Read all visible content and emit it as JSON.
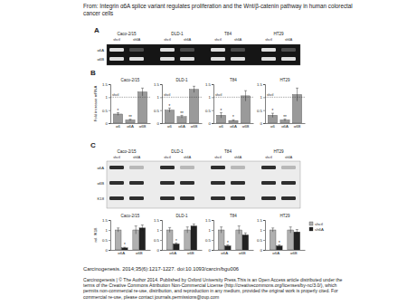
{
  "header": [
    "From: Integrin α6A splice variant regulates proliferation and the Wnt/β-catenin pathway in human colorectal",
    "cancer cells"
  ],
  "panels": [
    "A",
    "B",
    "C"
  ],
  "cell_lines": [
    "Caco-2/15",
    "DLD-1",
    "T84",
    "HT29"
  ],
  "lanes": [
    "shctl",
    "sh6A"
  ],
  "gel_bands": [
    "α6A",
    "α6B"
  ],
  "blot_bands": [
    "α6A",
    "α6B",
    "K18"
  ],
  "chart_data": [
    {
      "type": "bar",
      "title": "Caco-2/15",
      "y_label": "Fold increase mRNA",
      "categories": [
        "α6",
        "α6A",
        "α6B"
      ],
      "values": [
        0.35,
        0.12,
        1.2
      ],
      "errors": [
        0.05,
        0.03,
        0.15
      ],
      "color": "#9a9a9a",
      "ylim": [
        0,
        1.5
      ],
      "yticks": [
        0,
        0.5,
        1,
        1.5
      ],
      "annotations": [
        {
          "y": 1,
          "text": "shctl"
        },
        {
          "category": "α6",
          "text": "*"
        },
        {
          "category": "α6A",
          "text": "**"
        }
      ]
    },
    {
      "type": "bar",
      "title": "DLD-1",
      "categories": [
        "α6",
        "α6A",
        "α6B"
      ],
      "values": [
        0.5,
        0.25,
        1.3
      ],
      "errors": [
        0.08,
        0.05,
        0.12
      ],
      "color": "#9a9a9a",
      "ylim": [
        0,
        1.5
      ],
      "yticks": [
        0,
        0.5,
        1,
        1.5
      ],
      "annotations": [
        {
          "y": 1,
          "text": "shctl"
        },
        {
          "category": "α6",
          "text": "*"
        },
        {
          "category": "α6A",
          "text": "**"
        }
      ]
    },
    {
      "type": "bar",
      "title": "T84",
      "categories": [
        "α6",
        "α6A",
        "α6B"
      ],
      "values": [
        0.3,
        0.1,
        1.05
      ],
      "errors": [
        0.1,
        0.03,
        0.2
      ],
      "color": "#9a9a9a",
      "ylim": [
        0,
        1.5
      ],
      "yticks": [
        0,
        0.5,
        1,
        1.5
      ],
      "annotations": [
        {
          "y": 1,
          "text": "shctl"
        },
        {
          "category": "α6",
          "text": "*"
        },
        {
          "category": "α6A",
          "text": "*"
        }
      ]
    },
    {
      "type": "bar",
      "title": "HT29",
      "categories": [
        "α6",
        "α6A",
        "α6B"
      ],
      "values": [
        0.3,
        0.12,
        1.1
      ],
      "errors": [
        0.08,
        0.04,
        0.25
      ],
      "color": "#9a9a9a",
      "ylim": [
        0,
        1.5
      ],
      "yticks": [
        0,
        0.5,
        1,
        1.5
      ],
      "annotations": [
        {
          "y": 1,
          "text": "shctl"
        },
        {
          "category": "α6",
          "text": "*"
        },
        {
          "category": "α6A",
          "text": "**"
        }
      ]
    },
    {
      "type": "bar",
      "title": "Caco-2/15",
      "y_label": "rel. /K18",
      "categories": [
        "α6A",
        "α6B"
      ],
      "series": [
        {
          "color": "#b0b0b0",
          "values": [
            1,
            1
          ],
          "errors": [
            0.1,
            0.2
          ]
        },
        {
          "color": "#222222",
          "values": [
            0.1,
            1.1
          ],
          "errors": [
            0.03,
            0.15
          ]
        }
      ],
      "ylim": [
        0,
        1.5
      ],
      "yticks": [
        0,
        0.5,
        1,
        1.5
      ],
      "annotations": [
        {
          "category": "α6A",
          "series": 1,
          "text": "*"
        }
      ]
    },
    {
      "type": "bar",
      "title": "DLD-1",
      "categories": [
        "α6A",
        "α6B"
      ],
      "series": [
        {
          "color": "#b0b0b0",
          "values": [
            1,
            1
          ],
          "errors": [
            0.12,
            0.15
          ]
        },
        {
          "color": "#222222",
          "values": [
            0.3,
            1.2
          ],
          "errors": [
            0.05,
            0.1
          ]
        }
      ],
      "ylim": [
        0,
        1.5
      ],
      "yticks": [
        0,
        0.5,
        1,
        1.5
      ],
      "annotations": [
        {
          "category": "α6A",
          "series": 1,
          "text": "*"
        }
      ]
    },
    {
      "type": "bar",
      "title": "T84",
      "categories": [
        "α6A",
        "α6B"
      ],
      "series": [
        {
          "color": "#b0b0b0",
          "values": [
            1,
            1
          ],
          "errors": [
            0.15,
            0.2
          ]
        },
        {
          "color": "#222222",
          "values": [
            0.2,
            0.75
          ],
          "errors": [
            0.05,
            0.1
          ]
        }
      ],
      "ylim": [
        0,
        1.5
      ],
      "yticks": [
        0,
        0.5,
        1,
        1.5
      ],
      "annotations": [
        {
          "category": "α6A",
          "series": 1,
          "text": "*"
        }
      ]
    },
    {
      "type": "bar",
      "title": "HT29",
      "categories": [
        "α6A",
        "α6B"
      ],
      "series": [
        {
          "name": "shctl",
          "color": "#b0b0b0",
          "values": [
            1,
            1
          ],
          "errors": [
            0.1,
            0.15
          ]
        },
        {
          "name": "sh6A",
          "color": "#222222",
          "values": [
            0.2,
            0.9
          ],
          "errors": [
            0.05,
            0.12
          ]
        }
      ],
      "ylim": [
        0,
        1.5
      ],
      "yticks": [
        0,
        0.5,
        1,
        1.5
      ],
      "legend": "right",
      "annotations": [
        {
          "category": "α6A",
          "series": 1,
          "text": "*"
        }
      ]
    }
  ],
  "citation": "Carcinogenesis. 2014;35(6):1217-1227. doi:10.1093/carcin/bgu006",
  "footer": [
    "Carcinogenesis | © The Author 2014. Published by Oxford University Press.This is an Open Access article distributed under the",
    "terms of the Creative Commons Attribution Non-Commercial License (http://creativecommons.org/licenses/by-nc/3.0/), which",
    "permits non-commercial re-use, distribution, and reproduction in any medium, provided the original work is properly cited. For",
    "commercial re-use, please contact journals.permissions@oup.com"
  ]
}
